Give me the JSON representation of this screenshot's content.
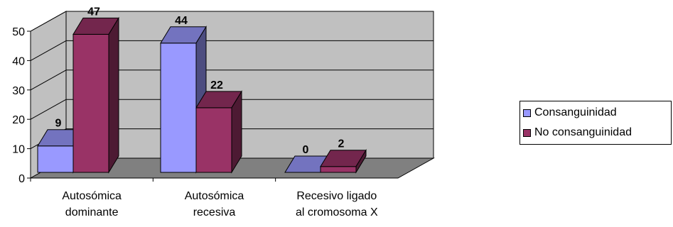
{
  "chart_data": {
    "type": "bar",
    "categories": [
      [
        "Autosómica",
        "dominante"
      ],
      [
        "Autosómica",
        "recesiva"
      ],
      [
        "Recesivo ligado",
        "al cromosoma X"
      ]
    ],
    "series": [
      {
        "name": "Consanguinidad",
        "values": [
          9,
          44,
          0
        ],
        "color": "#9999FF"
      },
      {
        "name": "No consanguinidad",
        "values": [
          47,
          22,
          2
        ],
        "color": "#993366"
      }
    ],
    "ylim": [
      0,
      50
    ],
    "yticks": [
      0,
      10,
      20,
      30,
      40,
      50
    ],
    "grid": true,
    "legend_position": "right",
    "data_labels": true,
    "style": "3d-clustered-column",
    "wall_color": "#C0C0C0",
    "floor_color": "#808080"
  }
}
